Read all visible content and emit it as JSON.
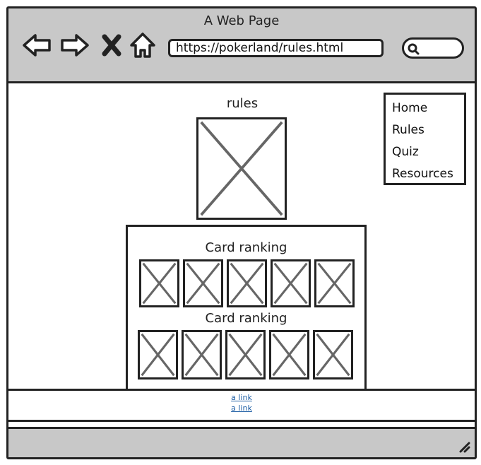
{
  "window": {
    "title": "A Web Page",
    "url": "https://pokerland/rules.html"
  },
  "toolbar": {
    "icons": [
      "back-arrow-icon",
      "forward-arrow-icon",
      "close-x-icon",
      "home-icon",
      "search-icon"
    ]
  },
  "page": {
    "heading": "rules"
  },
  "nav": {
    "items": [
      {
        "label": "Home"
      },
      {
        "label": "Rules"
      },
      {
        "label": "Quiz"
      },
      {
        "label": "Resources"
      }
    ]
  },
  "card_panel": {
    "sections": [
      {
        "label": "Card ranking",
        "card_count": 5
      },
      {
        "label": "Card ranking",
        "card_count": 5
      }
    ]
  },
  "footer": {
    "links": [
      {
        "label": "a link"
      },
      {
        "label": "a link"
      }
    ]
  },
  "colors": {
    "chrome": "#c8c8c8",
    "stroke": "#222222",
    "link": "#1f5fa5",
    "placeholder_x": "#666666"
  }
}
